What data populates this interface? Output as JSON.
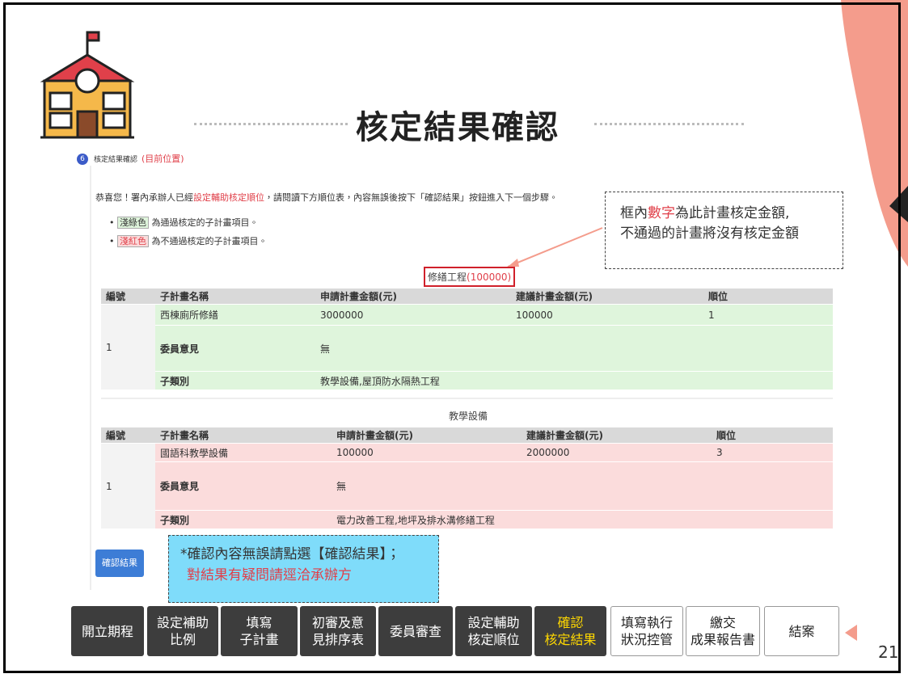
{
  "header": {
    "title": "核定結果確認"
  },
  "page_number": "21",
  "step": {
    "number": "6",
    "label": "核定結果確認",
    "current": "(目前位置)"
  },
  "intro": [
    "恭喜您！署內承辦人已經",
    "設定輔助核定順位",
    "，請閱讀下方順位表，內容無誤後按下「確認結果」按鈕進入下一個步驟。"
  ],
  "legend": [
    {
      "swatch": "淺綠色",
      "text": "為通過核定的子計畫項目。"
    },
    {
      "swatch": "淺紅色",
      "text": "為不通過核定的子計畫項目。"
    }
  ],
  "callout_top": {
    "line1": [
      "框內",
      "數字",
      "為此計畫核定金額,"
    ],
    "line2": "不通過的計畫將沒有核定金額"
  },
  "groups": [
    {
      "title": "修繕工程",
      "amount": "(100000)",
      "headers": [
        "編號",
        "子計畫名稱",
        "申請計畫金額(元)",
        "建議計畫金額(元)",
        "順位"
      ],
      "row": {
        "id": "1",
        "name": "西棟廁所修繕",
        "apply": "3000000",
        "suggest": "100000",
        "rank": "1"
      },
      "opinion_label": "委員意見",
      "opinion": "無",
      "category_label": "子類別",
      "category": "教學設備,屋頂防水隔熱工程"
    },
    {
      "title": "教學設備",
      "headers": [
        "編號",
        "子計畫名稱",
        "申請計畫金額(元)",
        "建議計畫金額(元)",
        "順位"
      ],
      "row": {
        "id": "1",
        "name": "國語科教學設備",
        "apply": "100000",
        "suggest": "2000000",
        "rank": "3"
      },
      "opinion_label": "委員意見",
      "opinion": "無",
      "category_label": "子類別",
      "category": "電力改善工程,地坪及排水溝修繕工程"
    }
  ],
  "button": "確認結果",
  "callout_bottom": [
    "*確認內容無誤請點選【確認結果】；",
    "對結果有疑問請逕洽承辦方"
  ],
  "nav": [
    [
      "開立期程"
    ],
    [
      "設定補助",
      "比例"
    ],
    [
      "填寫",
      "子計畫"
    ],
    [
      "初審及意",
      "見排序表"
    ],
    [
      "委員審查"
    ],
    [
      "設定輔助",
      "核定順位"
    ],
    [
      "確認",
      "核定結果"
    ],
    [
      "填寫執行",
      "狀況控管"
    ],
    [
      "繳交",
      "成果報告書"
    ],
    [
      "結案"
    ]
  ]
}
